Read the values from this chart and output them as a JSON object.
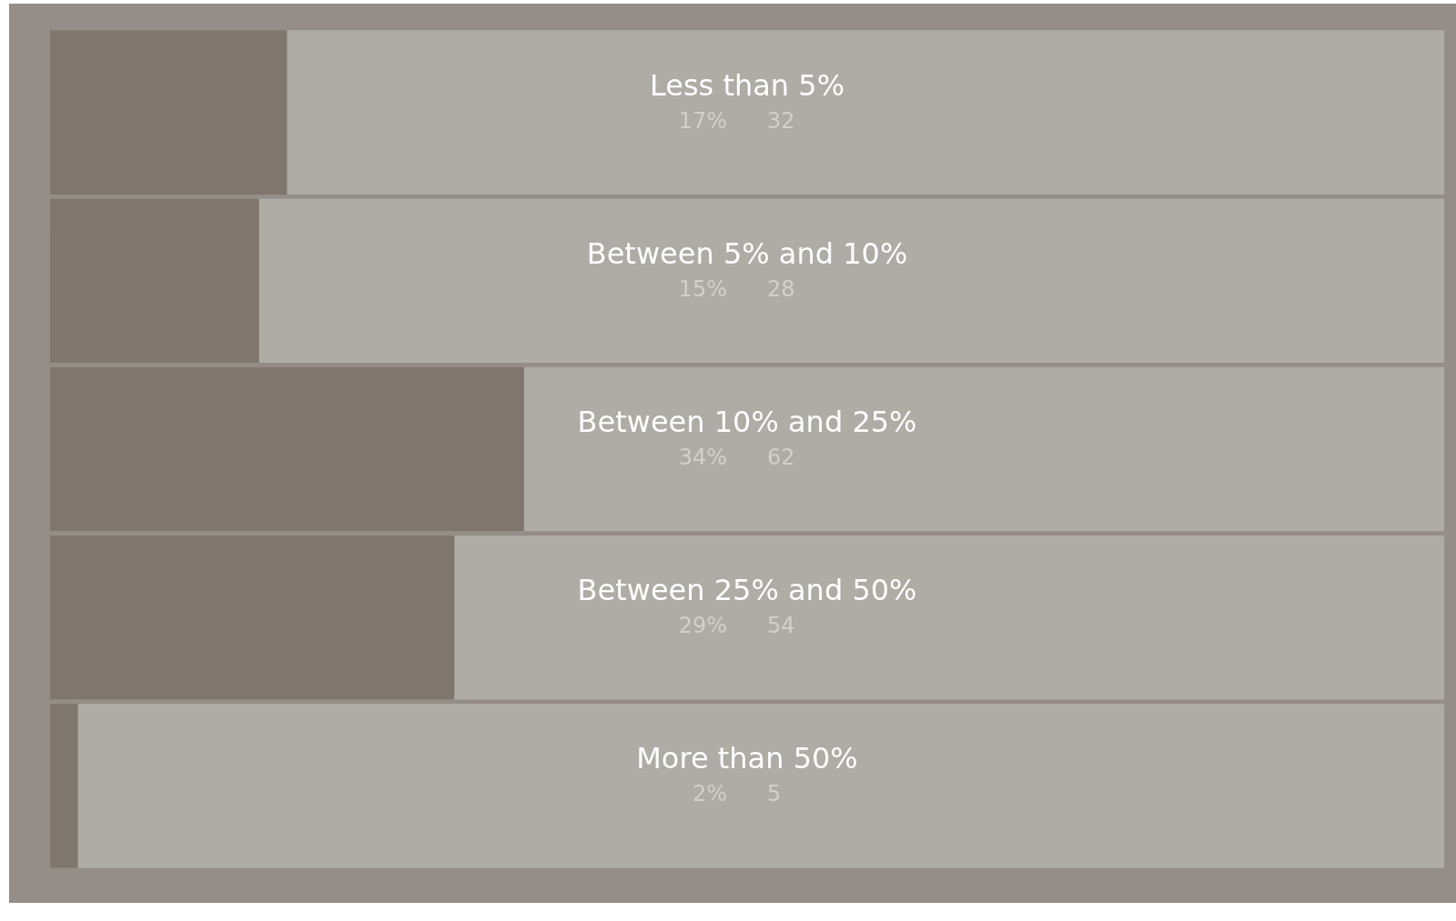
{
  "chart_data": {
    "type": "bar",
    "orientation": "horizontal",
    "categories": [
      "Less than 5%",
      "Between 5% and 10%",
      "Between 10% and 25%",
      "Between 25% and 50%",
      "More than 50%"
    ],
    "series": [
      {
        "color": "#7f776d",
        "values": [
          17,
          15,
          34,
          29,
          2
        ],
        "value_labels": [
          "17%",
          "15%",
          "34%",
          "29%",
          "2%"
        ]
      }
    ],
    "annotations": [
      "32",
      "28",
      "62",
      "54",
      "5"
    ],
    "xlim": [
      0,
      100
    ],
    "tick_labels": "y"
  }
}
